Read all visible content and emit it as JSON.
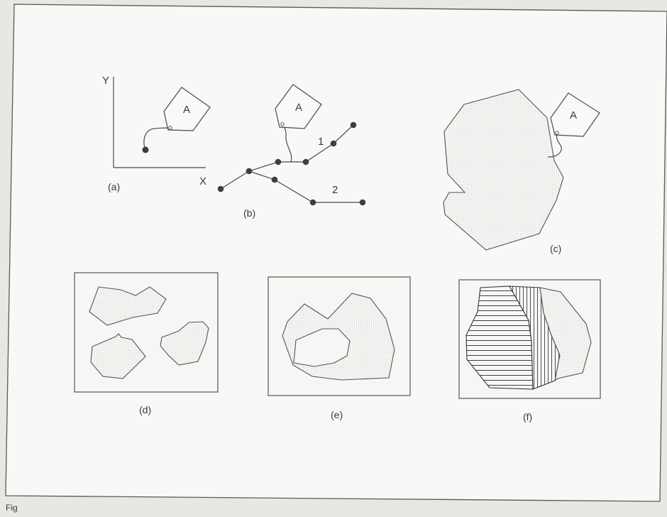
{
  "panel_a": {
    "caption": "(a)",
    "x_axis": "X",
    "y_axis": "Y",
    "tag_label": "A"
  },
  "panel_b": {
    "caption": "(b)",
    "tag_label": "A",
    "line_1_label": "1",
    "line_2_label": "2"
  },
  "panel_c": {
    "caption": "(c)",
    "tag_label": "A"
  },
  "panel_d": {
    "caption": "(d)"
  },
  "panel_e": {
    "caption": "(e)"
  },
  "panel_f": {
    "caption": "(f)"
  },
  "footer": {
    "caption_fragment": "Fig"
  },
  "colors": {
    "paper": "#f8f8f6",
    "ink": "#4a4a4a",
    "background": "#e9e7e3"
  }
}
